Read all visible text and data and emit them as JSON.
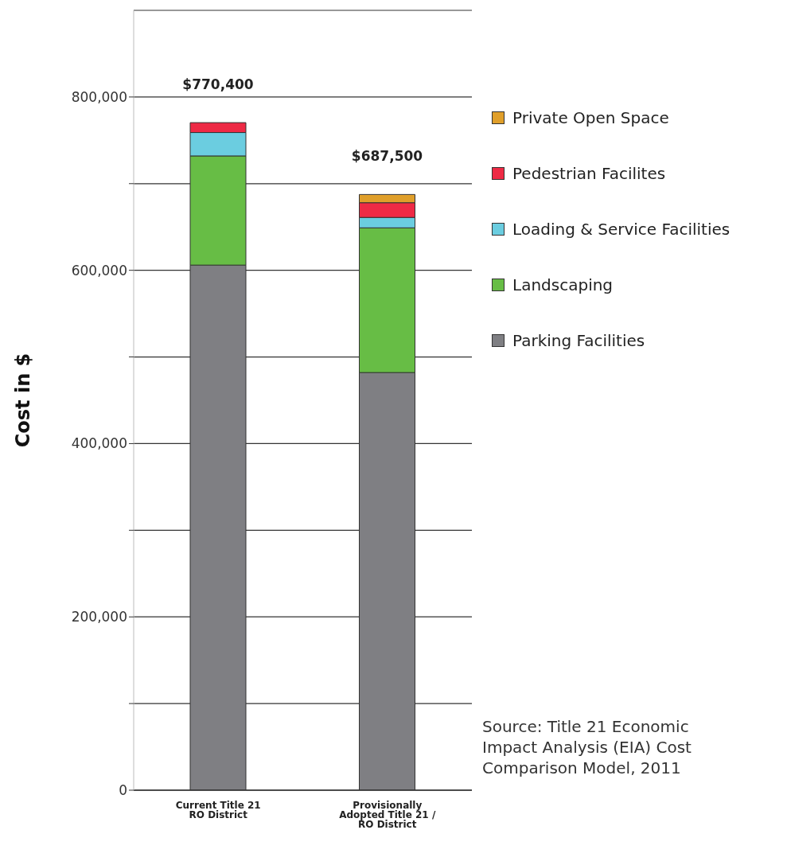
{
  "chart_data": {
    "type": "bar",
    "stacked": true,
    "ylabel": "Cost in $",
    "categories": [
      "Current Title 21 RO District",
      "Provisionally Adopted Title 21 / RO District"
    ],
    "series": [
      {
        "name": "Parking Facilities",
        "color": "#7f7f83",
        "values": [
          606000,
          482000
        ]
      },
      {
        "name": "Landscaping",
        "color": "#67bd45",
        "values": [
          126000,
          167000
        ]
      },
      {
        "name": "Loading & Service Facilities",
        "color": "#6bcde0",
        "values": [
          27000,
          12000
        ]
      },
      {
        "name": "Pedestrian Facilites",
        "color": "#ee2a45",
        "values": [
          11400,
          17000
        ]
      },
      {
        "name": "Private Open Space",
        "color": "#e09f2a",
        "values": [
          0,
          9500
        ]
      }
    ],
    "totals": [
      "$770,400",
      "$687,500"
    ],
    "ylim": [
      0,
      900000
    ],
    "yticks": [
      0,
      {
        "value": 100000,
        "label": null
      },
      {
        "value": 200000,
        "label": "200,000"
      },
      {
        "value": 300000,
        "label": null
      },
      {
        "value": 400000,
        "label": "400,000"
      },
      {
        "value": 500000,
        "label": null
      },
      {
        "value": 600000,
        "label": "600,000"
      },
      {
        "value": 700000,
        "label": null
      },
      {
        "value": 800000,
        "label": "800,000"
      }
    ],
    "grid": "y",
    "legend": "right",
    "annotations": [
      "Source:  Title 21 Economic Impact Analysis (EIA) Cost Comparison Model, 2011"
    ]
  }
}
